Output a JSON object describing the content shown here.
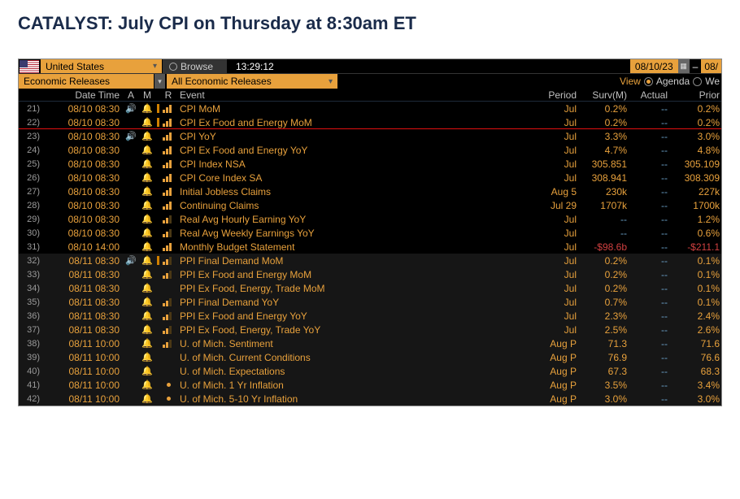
{
  "title": "CATALYST: July CPI on Thursday at 8:30am ET",
  "top": {
    "country": "United States",
    "browse": "Browse",
    "clock": "13:29:12",
    "date_from": "08/10/23",
    "date_to": "08/"
  },
  "bar2": {
    "releases": "Economic Releases",
    "all": "All Economic Releases",
    "view_label": "View",
    "opt_agenda": "Agenda",
    "opt_week": "We"
  },
  "headers": {
    "dt": "Date Time",
    "a": "A",
    "m": "M",
    "r": "R",
    "ev": "Event",
    "per": "Period",
    "surv": "Surv(M)",
    "act": "Actual",
    "pri": "Prior"
  },
  "rows": [
    {
      "idx": "21)",
      "dt": "08/10 08:30",
      "spk": true,
      "bell": true,
      "ind": true,
      "rank": "hi",
      "ev": "CPI MoM",
      "per": "Jul",
      "surv": "0.2%",
      "act": "--",
      "pri": "0.2%",
      "bg": "a",
      "redline": false
    },
    {
      "idx": "22)",
      "dt": "08/10 08:30",
      "spk": false,
      "bell": true,
      "ind": true,
      "rank": "hi",
      "ev": "CPI Ex Food and Energy MoM",
      "per": "Jul",
      "surv": "0.2%",
      "act": "--",
      "pri": "0.2%",
      "bg": "a",
      "redline": true
    },
    {
      "idx": "23)",
      "dt": "08/10 08:30",
      "spk": true,
      "bell": true,
      "ind": false,
      "rank": "hi",
      "ev": "CPI YoY",
      "per": "Jul",
      "surv": "3.3%",
      "act": "--",
      "pri": "3.0%",
      "bg": "a"
    },
    {
      "idx": "24)",
      "dt": "08/10 08:30",
      "spk": false,
      "bell": true,
      "ind": false,
      "rank": "hi",
      "ev": "CPI Ex Food and Energy YoY",
      "per": "Jul",
      "surv": "4.7%",
      "act": "--",
      "pri": "4.8%",
      "bg": "a"
    },
    {
      "idx": "25)",
      "dt": "08/10 08:30",
      "spk": false,
      "bell": true,
      "ind": false,
      "rank": "hi",
      "ev": "CPI Index NSA",
      "per": "Jul",
      "surv": "305.851",
      "act": "--",
      "pri": "305.109",
      "bg": "a"
    },
    {
      "idx": "26)",
      "dt": "08/10 08:30",
      "spk": false,
      "bell": true,
      "ind": false,
      "rank": "hi",
      "ev": "CPI Core Index SA",
      "per": "Jul",
      "surv": "308.941",
      "act": "--",
      "pri": "308.309",
      "bg": "a"
    },
    {
      "idx": "27)",
      "dt": "08/10 08:30",
      "spk": false,
      "bell": true,
      "ind": false,
      "rank": "hi",
      "ev": "Initial Jobless Claims",
      "per": "Aug 5",
      "surv": "230k",
      "act": "--",
      "pri": "227k",
      "bg": "a"
    },
    {
      "idx": "28)",
      "dt": "08/10 08:30",
      "spk": false,
      "bell": true,
      "ind": false,
      "rank": "hi",
      "ev": "Continuing Claims",
      "per": "Jul 29",
      "surv": "1707k",
      "act": "--",
      "pri": "1700k",
      "bg": "a"
    },
    {
      "idx": "29)",
      "dt": "08/10 08:30",
      "spk": false,
      "bell": true,
      "ind": false,
      "rank": "med",
      "ev": "Real Avg Hourly Earning YoY",
      "per": "Jul",
      "surv": "--",
      "act": "--",
      "pri": "1.2%",
      "bg": "a"
    },
    {
      "idx": "30)",
      "dt": "08/10 08:30",
      "spk": false,
      "bell": true,
      "ind": false,
      "rank": "med",
      "ev": "Real Avg Weekly Earnings YoY",
      "per": "Jul",
      "surv": "--",
      "act": "--",
      "pri": "0.6%",
      "bg": "a"
    },
    {
      "idx": "31)",
      "dt": "08/10 14:00",
      "spk": false,
      "bell": true,
      "ind": false,
      "rank": "hi",
      "ev": "Monthly Budget Statement",
      "per": "Jul",
      "surv": "-$98.6b",
      "surv_neg": true,
      "act": "--",
      "pri": "-$211.1",
      "pri_neg": true,
      "bg": "a"
    },
    {
      "idx": "32)",
      "dt": "08/11 08:30",
      "spk": true,
      "bell": true,
      "ind": true,
      "rank": "med",
      "ev": "PPI Final Demand MoM",
      "per": "Jul",
      "surv": "0.2%",
      "act": "--",
      "pri": "0.1%",
      "bg": "b"
    },
    {
      "idx": "33)",
      "dt": "08/11 08:30",
      "spk": false,
      "bell": true,
      "ind": false,
      "rank": "med",
      "ev": "PPI Ex Food and Energy MoM",
      "per": "Jul",
      "surv": "0.2%",
      "act": "--",
      "pri": "0.1%",
      "bg": "b"
    },
    {
      "idx": "34)",
      "dt": "08/11 08:30",
      "spk": false,
      "bell": true,
      "ind": false,
      "rank": "",
      "ev": "PPI Ex Food, Energy, Trade MoM",
      "per": "Jul",
      "surv": "0.2%",
      "act": "--",
      "pri": "0.1%",
      "bg": "b"
    },
    {
      "idx": "35)",
      "dt": "08/11 08:30",
      "spk": false,
      "bell": true,
      "ind": false,
      "rank": "med",
      "ev": "PPI Final Demand YoY",
      "per": "Jul",
      "surv": "0.7%",
      "act": "--",
      "pri": "0.1%",
      "bg": "b"
    },
    {
      "idx": "36)",
      "dt": "08/11 08:30",
      "spk": false,
      "bell": true,
      "ind": false,
      "rank": "med",
      "ev": "PPI Ex Food and Energy YoY",
      "per": "Jul",
      "surv": "2.3%",
      "act": "--",
      "pri": "2.4%",
      "bg": "b"
    },
    {
      "idx": "37)",
      "dt": "08/11 08:30",
      "spk": false,
      "bell": true,
      "ind": false,
      "rank": "med",
      "ev": "PPI Ex Food, Energy, Trade YoY",
      "per": "Jul",
      "surv": "2.5%",
      "act": "--",
      "pri": "2.6%",
      "bg": "b"
    },
    {
      "idx": "38)",
      "dt": "08/11 10:00",
      "spk": false,
      "bell": true,
      "ind": false,
      "rank": "med",
      "ev": "U. of Mich. Sentiment",
      "per": "Aug P",
      "surv": "71.3",
      "act": "--",
      "pri": "71.6",
      "bg": "b"
    },
    {
      "idx": "39)",
      "dt": "08/11 10:00",
      "spk": false,
      "bell": true,
      "ind": false,
      "rank": "",
      "ev": "U. of Mich. Current Conditions",
      "per": "Aug P",
      "surv": "76.9",
      "act": "--",
      "pri": "76.6",
      "bg": "b"
    },
    {
      "idx": "40)",
      "dt": "08/11 10:00",
      "spk": false,
      "bell": true,
      "ind": false,
      "rank": "",
      "ev": "U. of Mich. Expectations",
      "per": "Aug P",
      "surv": "67.3",
      "act": "--",
      "pri": "68.3",
      "bg": "b"
    },
    {
      "idx": "41)",
      "dt": "08/11 10:00",
      "spk": false,
      "bell": true,
      "ind": false,
      "rank": "dot",
      "ev": "U. of Mich. 1 Yr Inflation",
      "per": "Aug P",
      "surv": "3.5%",
      "act": "--",
      "pri": "3.4%",
      "bg": "b"
    },
    {
      "idx": "42)",
      "dt": "08/11 10:00",
      "spk": false,
      "bell": true,
      "ind": false,
      "rank": "dot",
      "ev": "U. of Mich. 5-10 Yr Inflation",
      "per": "Aug P",
      "surv": "3.0%",
      "act": "--",
      "pri": "3.0%",
      "bg": "b"
    }
  ]
}
